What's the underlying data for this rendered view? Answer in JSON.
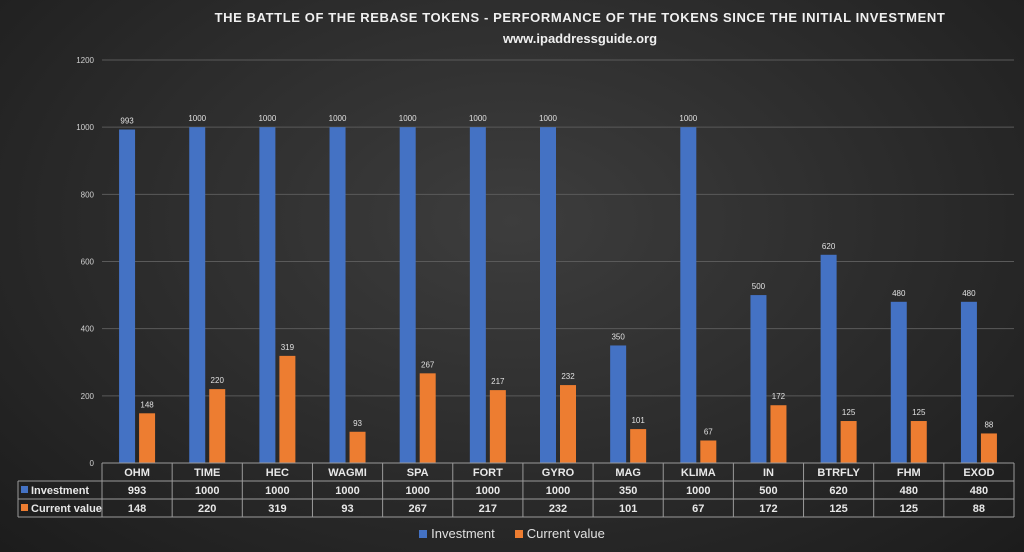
{
  "chart_data": {
    "type": "bar",
    "title": "THE BATTLE OF THE REBASE TOKENS  - PERFORMANCE  OF THE TOKENS  SINCE THE  INITIAL INVESTMENT",
    "subtitle": "www.ipaddressguide.org",
    "categories": [
      "OHM",
      "TIME",
      "HEC",
      "WAGMI",
      "SPA",
      "FORT",
      "GYRO",
      "MAG",
      "KLIMA",
      "IN",
      "BTRFLY",
      "FHM",
      "EXOD"
    ],
    "series": [
      {
        "name": "Investment",
        "color": "#4472C4",
        "values": [
          993,
          1000,
          1000,
          1000,
          1000,
          1000,
          1000,
          350,
          1000,
          500,
          620,
          480,
          480
        ]
      },
      {
        "name": "Current value",
        "color": "#ED7D31",
        "values": [
          148,
          220,
          319,
          93,
          267,
          217,
          232,
          101,
          67,
          172,
          125,
          125,
          88
        ]
      }
    ],
    "ylim": [
      0,
      1200
    ],
    "yticks": [
      0,
      200,
      400,
      600,
      800,
      1000,
      1200
    ],
    "grid": true,
    "data_table": true,
    "legend": "bottom"
  }
}
